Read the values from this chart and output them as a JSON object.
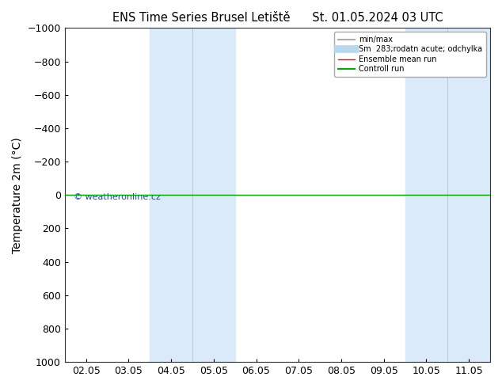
{
  "title": "ENS Time Series Brusel Letiště",
  "title2": "St. 01.05.2024 03 UTC",
  "ylabel": "Temperature 2m (°C)",
  "watermark": "© weatheronline.cz",
  "ylim_bottom": 1000,
  "ylim_top": -1000,
  "yticks": [
    -1000,
    -800,
    -600,
    -400,
    -200,
    0,
    200,
    400,
    600,
    800,
    1000
  ],
  "x_labels": [
    "02.05",
    "03.05",
    "04.05",
    "05.05",
    "06.05",
    "07.05",
    "08.05",
    "09.05",
    "10.05",
    "11.05"
  ],
  "x_tick_positions": [
    0,
    1,
    2,
    3,
    4,
    5,
    6,
    7,
    8,
    9
  ],
  "xlim": [
    -0.5,
    9.5
  ],
  "shaded_bands": [
    {
      "x_start": 1.5,
      "x_end": 3.5,
      "color": "#daeaf8"
    },
    {
      "x_start": 7.5,
      "x_end": 9.5,
      "color": "#daeaf8"
    }
  ],
  "vertical_lines_in_bands": [
    {
      "x": 2.5,
      "color": "#aaccee"
    },
    {
      "x": 8.5,
      "color": "#aaccee"
    }
  ],
  "green_line_y": 0,
  "red_line_y": 0,
  "legend_items": [
    {
      "label": "min/max",
      "color": "#aaaaaa",
      "lw": 1.5
    },
    {
      "label": "Sm  283;rodatn acute; odchylka",
      "color": "#b8d8f0",
      "lw": 7
    },
    {
      "label": "Ensemble mean run",
      "color": "#ff0000",
      "lw": 1
    },
    {
      "label": "Controll run",
      "color": "#00aa00",
      "lw": 1.5
    }
  ],
  "background_color": "#ffffff",
  "plot_bg_color": "#ffffff",
  "border_color": "#333333",
  "font_size": 9,
  "title_font_size": 10.5,
  "watermark_color": "#2244cc",
  "watermark_fontsize": 8
}
